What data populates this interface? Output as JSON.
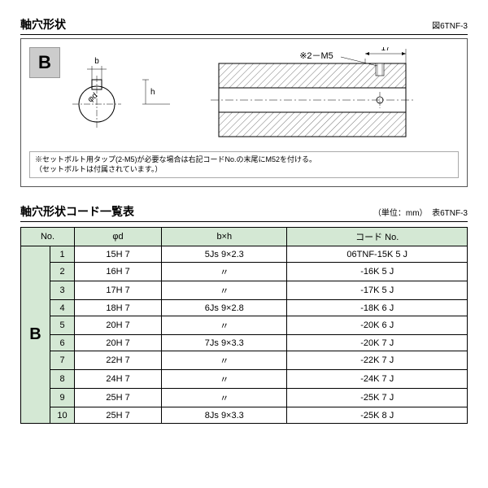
{
  "fig": {
    "title": "軸穴形状",
    "ref": "図6TNF-3",
    "badge": "B",
    "label_b": "b",
    "label_h": "h",
    "label_phid": "φd",
    "label_m5": "※2－M5",
    "label_17": "17",
    "note1": "※セットボルト用タップ(2-M5)が必要な場合は右記コードNo.の末尾にM52を付ける。",
    "note2": "（セットボルトは付属されています。）"
  },
  "table": {
    "title": "軸穴形状コード一覧表",
    "unit": "（単位：mm）",
    "ref": "表6TNF-3",
    "sideLabel": "B",
    "headers": {
      "no": "No.",
      "phid": "φd",
      "bxh": "b×h",
      "code": "コード No."
    },
    "rows": [
      {
        "no": "1",
        "phid": "15H 7",
        "bxh": "5Js 9×2.3",
        "code": "06TNF-15K 5 J"
      },
      {
        "no": "2",
        "phid": "16H 7",
        "bxh": "〃",
        "code": "-16K 5 J"
      },
      {
        "no": "3",
        "phid": "17H 7",
        "bxh": "〃",
        "code": "-17K 5 J"
      },
      {
        "no": "4",
        "phid": "18H 7",
        "bxh": "6Js 9×2.8",
        "code": "-18K 6 J"
      },
      {
        "no": "5",
        "phid": "20H 7",
        "bxh": "〃",
        "code": "-20K 6 J"
      },
      {
        "no": "6",
        "phid": "20H 7",
        "bxh": "7Js 9×3.3",
        "code": "-20K 7 J"
      },
      {
        "no": "7",
        "phid": "22H 7",
        "bxh": "〃",
        "code": "-22K 7 J"
      },
      {
        "no": "8",
        "phid": "24H 7",
        "bxh": "〃",
        "code": "-24K 7 J"
      },
      {
        "no": "9",
        "phid": "25H 7",
        "bxh": "〃",
        "code": "-25K 7 J"
      },
      {
        "no": "10",
        "phid": "25H 7",
        "bxh": "8Js 9×3.3",
        "code": "-25K 8 J"
      }
    ]
  },
  "style": {
    "headerBg": "#d4e8d4",
    "badgeBg": "#cccccc",
    "hatch": "#777777"
  }
}
